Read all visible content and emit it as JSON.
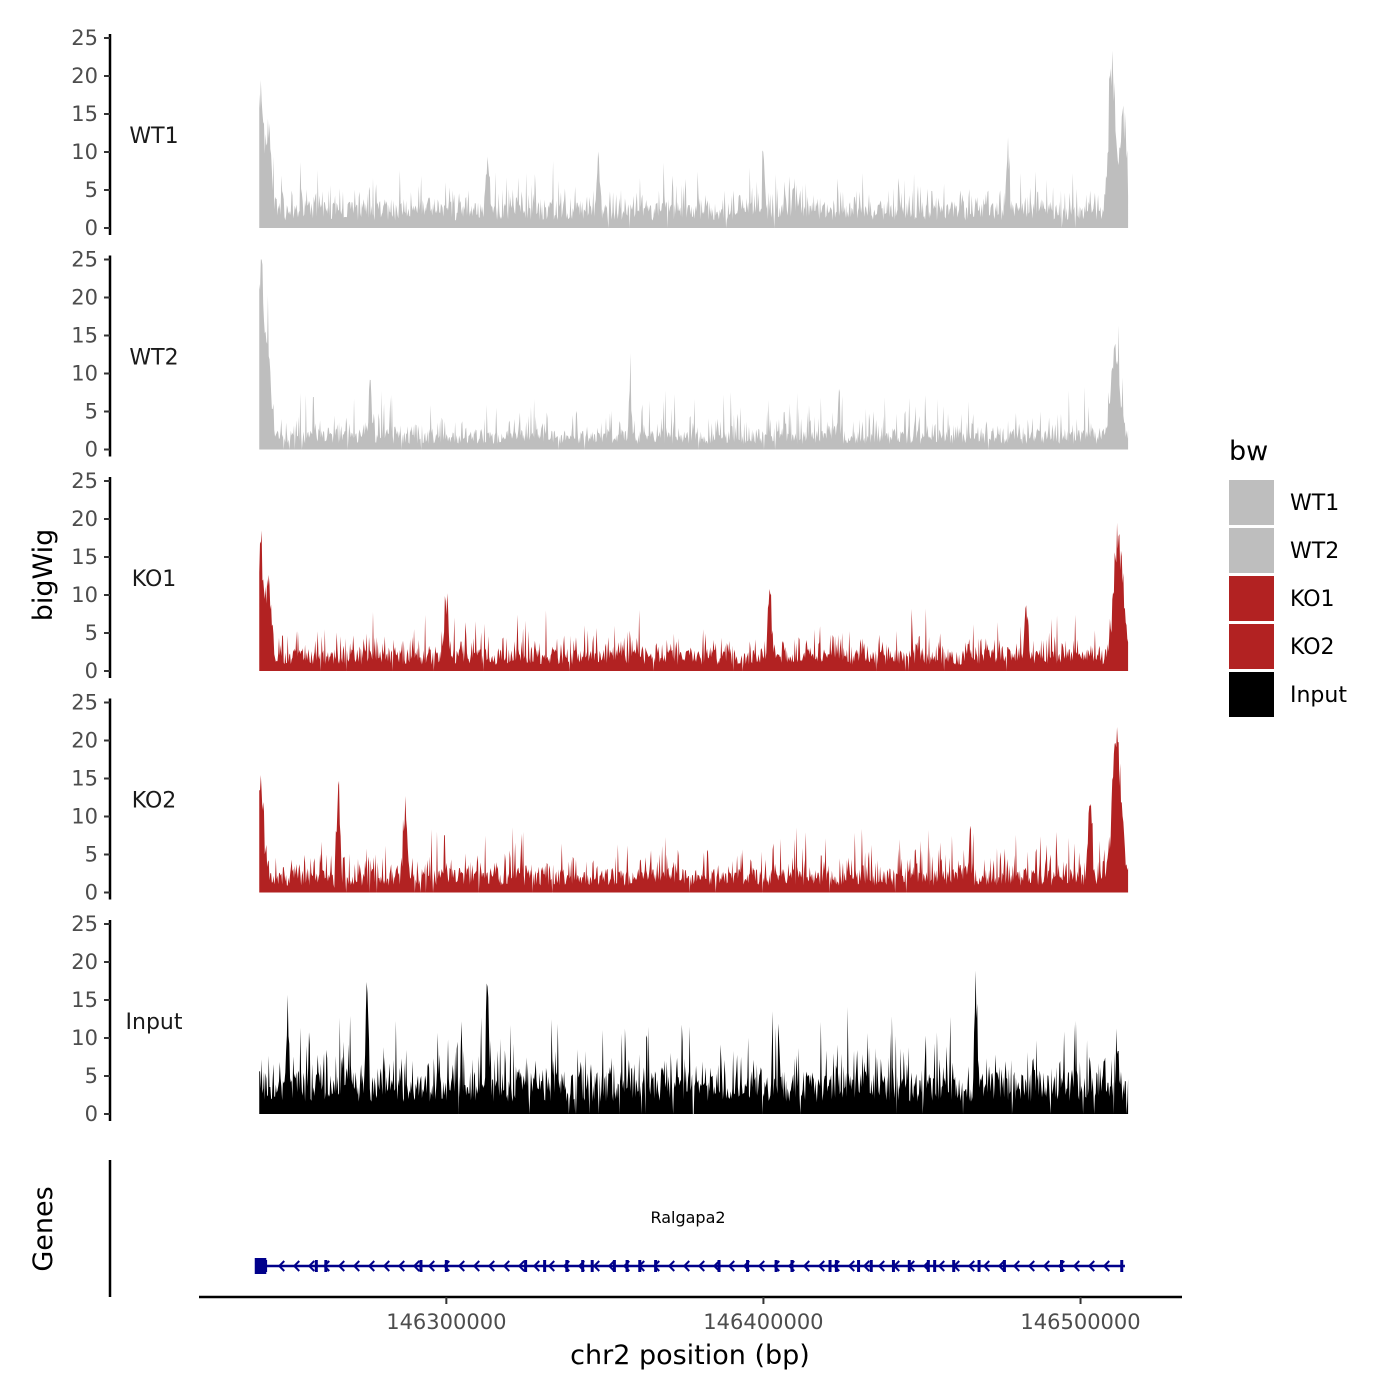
{
  "chart_data": {
    "type": "area",
    "ylabel": "bigWig",
    "genes_label": "Genes",
    "xlabel": "chr2 position (bp)",
    "xlim": [
      146222000,
      146532000
    ],
    "data_range": [
      146241000,
      146515000
    ],
    "ylim": [
      0,
      25
    ],
    "y_ticks": [
      0,
      5,
      10,
      15,
      20,
      25
    ],
    "x_ticks": [
      146300000,
      146400000,
      146500000
    ],
    "grid": false,
    "legend": {
      "title": "bw",
      "position": "right",
      "entries": [
        {
          "label": "WT1",
          "color": "#bebebe"
        },
        {
          "label": "WT2",
          "color": "#bebebe"
        },
        {
          "label": "KO1",
          "color": "#b22222"
        },
        {
          "label": "KO2",
          "color": "#b22222"
        },
        {
          "label": "Input",
          "color": "#000000"
        }
      ]
    },
    "series": [
      {
        "name": "WT1",
        "color": "#bebebe",
        "base": 2.8,
        "noise": 3.5,
        "peaks": [
          {
            "x": 146241500,
            "height": 17,
            "width": 1200
          },
          {
            "x": 146244000,
            "height": 11,
            "width": 1200
          },
          {
            "x": 146313000,
            "height": 8,
            "width": 600
          },
          {
            "x": 146348000,
            "height": 8,
            "width": 600
          },
          {
            "x": 146400000,
            "height": 8,
            "width": 600
          },
          {
            "x": 146477000,
            "height": 9,
            "width": 600
          },
          {
            "x": 146510000,
            "height": 20,
            "width": 1500
          },
          {
            "x": 146513500,
            "height": 14,
            "width": 1200
          }
        ]
      },
      {
        "name": "WT2",
        "color": "#bebebe",
        "base": 2.0,
        "noise": 3.8,
        "peaks": [
          {
            "x": 146241500,
            "height": 24,
            "width": 1000
          },
          {
            "x": 146243500,
            "height": 13,
            "width": 1500
          },
          {
            "x": 146276000,
            "height": 9,
            "width": 600
          },
          {
            "x": 146358000,
            "height": 8,
            "width": 600
          },
          {
            "x": 146511000,
            "height": 13,
            "width": 2000
          }
        ]
      },
      {
        "name": "KO1",
        "color": "#b22222",
        "base": 2.3,
        "noise": 3.8,
        "peaks": [
          {
            "x": 146241500,
            "height": 14,
            "width": 1200
          },
          {
            "x": 146244000,
            "height": 10,
            "width": 1200
          },
          {
            "x": 146300000,
            "height": 9,
            "width": 800
          },
          {
            "x": 146402000,
            "height": 10,
            "width": 800
          },
          {
            "x": 146483000,
            "height": 7,
            "width": 800
          },
          {
            "x": 146512000,
            "height": 18,
            "width": 2000
          }
        ]
      },
      {
        "name": "KO2",
        "color": "#b22222",
        "base": 2.5,
        "noise": 4.0,
        "peaks": [
          {
            "x": 146241500,
            "height": 14,
            "width": 1200
          },
          {
            "x": 146266000,
            "height": 11,
            "width": 800
          },
          {
            "x": 146287000,
            "height": 8,
            "width": 800
          },
          {
            "x": 146503000,
            "height": 10,
            "width": 800
          },
          {
            "x": 146511500,
            "height": 19,
            "width": 2000
          }
        ]
      },
      {
        "name": "Input",
        "color": "#000000",
        "base": 4.5,
        "noise": 5.5,
        "peaks": [
          {
            "x": 146313000,
            "height": 16,
            "width": 500
          },
          {
            "x": 146275000,
            "height": 14,
            "width": 500
          },
          {
            "x": 146467000,
            "height": 14,
            "width": 500
          },
          {
            "x": 146250000,
            "height": 14,
            "width": 400
          }
        ]
      }
    ],
    "gene": {
      "name": "Ralgapa2",
      "start": 146241000,
      "end": 146514000,
      "strand": "-",
      "color": "#00008b",
      "exons": [
        146241000,
        146241800,
        146243000,
        146259000,
        146262000,
        146292000,
        146300000,
        146325000,
        146331000,
        146338000,
        146343000,
        146346000,
        146353000,
        146357000,
        146361000,
        146366000,
        146386000,
        146395000,
        146404000,
        146409000,
        146421000,
        146423000,
        146430000,
        146434000,
        146441000,
        146446000,
        146452000,
        146454000,
        146460000,
        146468000,
        146476000,
        146494000,
        146513000
      ]
    }
  }
}
